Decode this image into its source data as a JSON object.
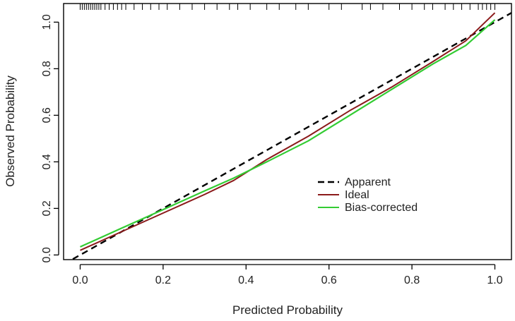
{
  "chart_data": {
    "type": "line",
    "title": "",
    "xlabel": "Predicted Probability",
    "ylabel": "Observed Probability",
    "xlim": [
      -0.04,
      1.04
    ],
    "ylim": [
      -0.02,
      1.08
    ],
    "xticks": [
      0.0,
      0.2,
      0.4,
      0.6,
      0.8,
      1.0
    ],
    "yticks": [
      0.0,
      0.2,
      0.4,
      0.6,
      0.8,
      1.0
    ],
    "xtick_labels": [
      "0.0",
      "0.2",
      "0.4",
      "0.6",
      "0.8",
      "1.0"
    ],
    "ytick_labels": [
      "0.0",
      "0.2",
      "0.4",
      "0.6",
      "0.8",
      "1.0"
    ],
    "grid": false,
    "legend_position": "center-right",
    "series": [
      {
        "name": "Apparent",
        "style": "dashed",
        "color": "#000000",
        "x": [
          -0.04,
          1.04
        ],
        "y": [
          -0.04,
          1.04
        ]
      },
      {
        "name": "Ideal",
        "style": "solid",
        "color": "#8b1a1a",
        "x": [
          0.0,
          0.1,
          0.2,
          0.3,
          0.37,
          0.45,
          0.55,
          0.65,
          0.75,
          0.85,
          0.93,
          1.0
        ],
        "y": [
          0.02,
          0.1,
          0.18,
          0.26,
          0.32,
          0.41,
          0.51,
          0.62,
          0.72,
          0.83,
          0.92,
          1.04
        ]
      },
      {
        "name": "Bias-corrected",
        "style": "solid",
        "color": "#33cc33",
        "x": [
          0.0,
          0.1,
          0.2,
          0.3,
          0.37,
          0.45,
          0.55,
          0.65,
          0.75,
          0.85,
          0.93,
          1.0
        ],
        "y": [
          0.035,
          0.115,
          0.195,
          0.275,
          0.33,
          0.4,
          0.49,
          0.6,
          0.71,
          0.82,
          0.9,
          1.01
        ]
      }
    ],
    "rug": {
      "axis": "top",
      "x": [
        0.0,
        0.005,
        0.01,
        0.015,
        0.02,
        0.025,
        0.03,
        0.035,
        0.04,
        0.045,
        0.05,
        0.06,
        0.07,
        0.08,
        0.09,
        0.1,
        0.11,
        0.13,
        0.15,
        0.17,
        0.19,
        0.21,
        0.24,
        0.27,
        0.3,
        0.33,
        0.36,
        0.38,
        0.41,
        0.45,
        0.48,
        0.52,
        0.55,
        0.6,
        0.63,
        0.68,
        0.7,
        0.73,
        0.77,
        0.8,
        0.83,
        0.85,
        0.88,
        0.9,
        0.92,
        0.94,
        0.96,
        0.97,
        0.98,
        0.99,
        1.0
      ]
    }
  }
}
